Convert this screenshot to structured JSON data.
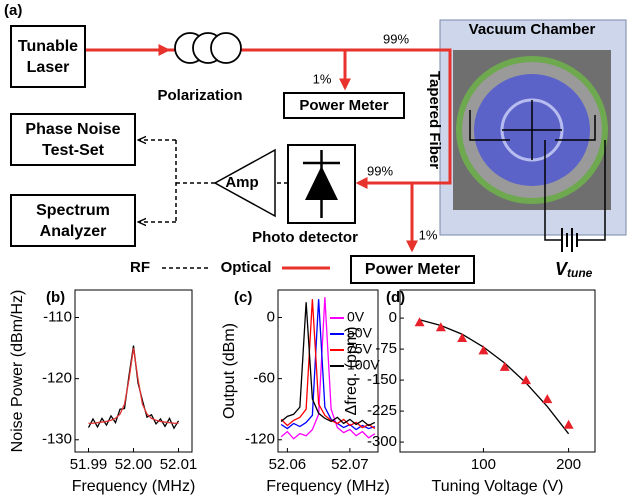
{
  "diagram": {
    "label": "(a)",
    "tunable_laser": "Tunable Laser",
    "polarization": "Polarization",
    "power_meter_top": "Power Meter",
    "phase_noise": "Phase Noise Test-Set",
    "spectrum_analyzer": "Spectrum Analyzer",
    "amp": "Amp",
    "photo_detector": "Photo detector",
    "power_meter_bottom": "Power Meter",
    "vacuum_chamber": "Vacuum Chamber",
    "tapered_fiber": "Tapered Fiber",
    "split_top": [
      "99%",
      "1%"
    ],
    "split_bottom": [
      "99%",
      "1%"
    ],
    "legend": [
      "RF",
      "Optical"
    ],
    "v_tune": {
      "symbol": "V",
      "subscript": "tune"
    }
  },
  "chart_data": [
    {
      "type": "line",
      "label": "(b)",
      "xlabel": "Frequency (MHz)",
      "ylabel": "Noise Power (dBm/Hz)",
      "x": [
        51.99,
        51.991,
        51.992,
        51.993,
        51.994,
        51.995,
        51.996,
        51.997,
        51.998,
        51.999,
        52.0,
        52.001,
        52.002,
        52.003,
        52.004,
        52.005,
        52.006,
        52.007,
        52.008,
        52.009,
        52.01
      ],
      "series": [
        {
          "color": "#000000",
          "values": [
            -128.0,
            -126.6,
            -127.9,
            -126.5,
            -127.6,
            -126.1,
            -127.2,
            -125.0,
            -124.9,
            -119.5,
            -114.6,
            -120.7,
            -123.6,
            -126.3,
            -125.9,
            -127.4,
            -126.6,
            -127.8,
            -126.5,
            -128.1,
            -126.9
          ]
        },
        {
          "color": "#e03030",
          "values": [
            -127.3,
            -127.3,
            -127.2,
            -127.1,
            -127.0,
            -126.8,
            -126.5,
            -125.8,
            -124.2,
            -120.1,
            -115.0,
            -120.1,
            -124.2,
            -125.8,
            -126.5,
            -126.8,
            -127.0,
            -127.1,
            -127.2,
            -127.3,
            -127.3
          ]
        }
      ],
      "xlim": [
        51.987,
        52.013
      ],
      "xticks": [
        51.99,
        {
          "value": 52,
          "label": "52.00"
        },
        52.01
      ],
      "ylim": [
        -132,
        -105.5
      ],
      "yticks": [
        -110,
        -120,
        -130
      ]
    },
    {
      "type": "line",
      "label": "(c)",
      "xlabel": "Frequency (MHz)",
      "ylabel": "Output (dBm)",
      "x": [
        52.059,
        52.06,
        52.061,
        52.062,
        52.063,
        52.064,
        52.065,
        52.066,
        52.067,
        52.068,
        52.069,
        52.07,
        52.071,
        52.072,
        52.073,
        52.074
      ],
      "series": [
        {
          "name": "0V",
          "color": "#ff00ff",
          "values": [
            -117,
            -112,
            -119,
            -114,
            -116,
            -110,
            -95,
            20,
            -90,
            -108,
            -113,
            -110,
            -116,
            -112,
            -118,
            -114
          ]
        },
        {
          "name": "50V",
          "color": "#0000ff",
          "values": [
            -105,
            -109,
            -104,
            -107,
            -103,
            -96,
            18,
            -88,
            -100,
            -104,
            -108,
            -105,
            -110,
            -106,
            -109,
            -107
          ]
        },
        {
          "name": "75V",
          "color": "#ff0000",
          "values": [
            -100,
            -106,
            -101,
            -98,
            -90,
            18,
            -85,
            -96,
            -101,
            -104,
            -100,
            -106,
            -103,
            -108,
            -105,
            -109
          ]
        },
        {
          "name": "100V",
          "color": "#000000",
          "values": [
            -102,
            -97,
            -95,
            -88,
            15,
            -80,
            -94,
            -99,
            -102,
            -98,
            -104,
            -100,
            -105,
            -101,
            -106,
            -103
          ]
        }
      ],
      "legend": "upper right",
      "xlim": [
        52.0585,
        52.0745
      ],
      "xticks": [
        52.06,
        52.07
      ],
      "ylim": [
        -132,
        27
      ],
      "yticks": [
        0,
        -60,
        -120
      ]
    },
    {
      "type": "scatter",
      "label": "(d)",
      "xlabel": "Tuning Voltage (V)",
      "ylabel": "Δfreq. (ppm)",
      "series": [
        {
          "type": "line",
          "color": "#000000",
          "x": [
            25,
            50,
            75,
            100,
            125,
            150,
            175,
            200
          ],
          "values": [
            -4,
            -18,
            -39,
            -70,
            -109,
            -157,
            -214,
            -280
          ]
        },
        {
          "type": "scatter",
          "color": "#e8202a",
          "x": [
            25,
            50,
            75,
            100,
            125,
            150,
            175,
            200
          ],
          "values": [
            -10,
            -22,
            -48,
            -78,
            -118,
            -150,
            -196,
            -258
          ]
        }
      ],
      "xlim": [
        2,
        231
      ],
      "xticks": [
        100,
        200
      ],
      "ylim": [
        -324,
        68
      ],
      "yticks": [
        0,
        -75,
        -150,
        -225,
        -300
      ]
    }
  ]
}
